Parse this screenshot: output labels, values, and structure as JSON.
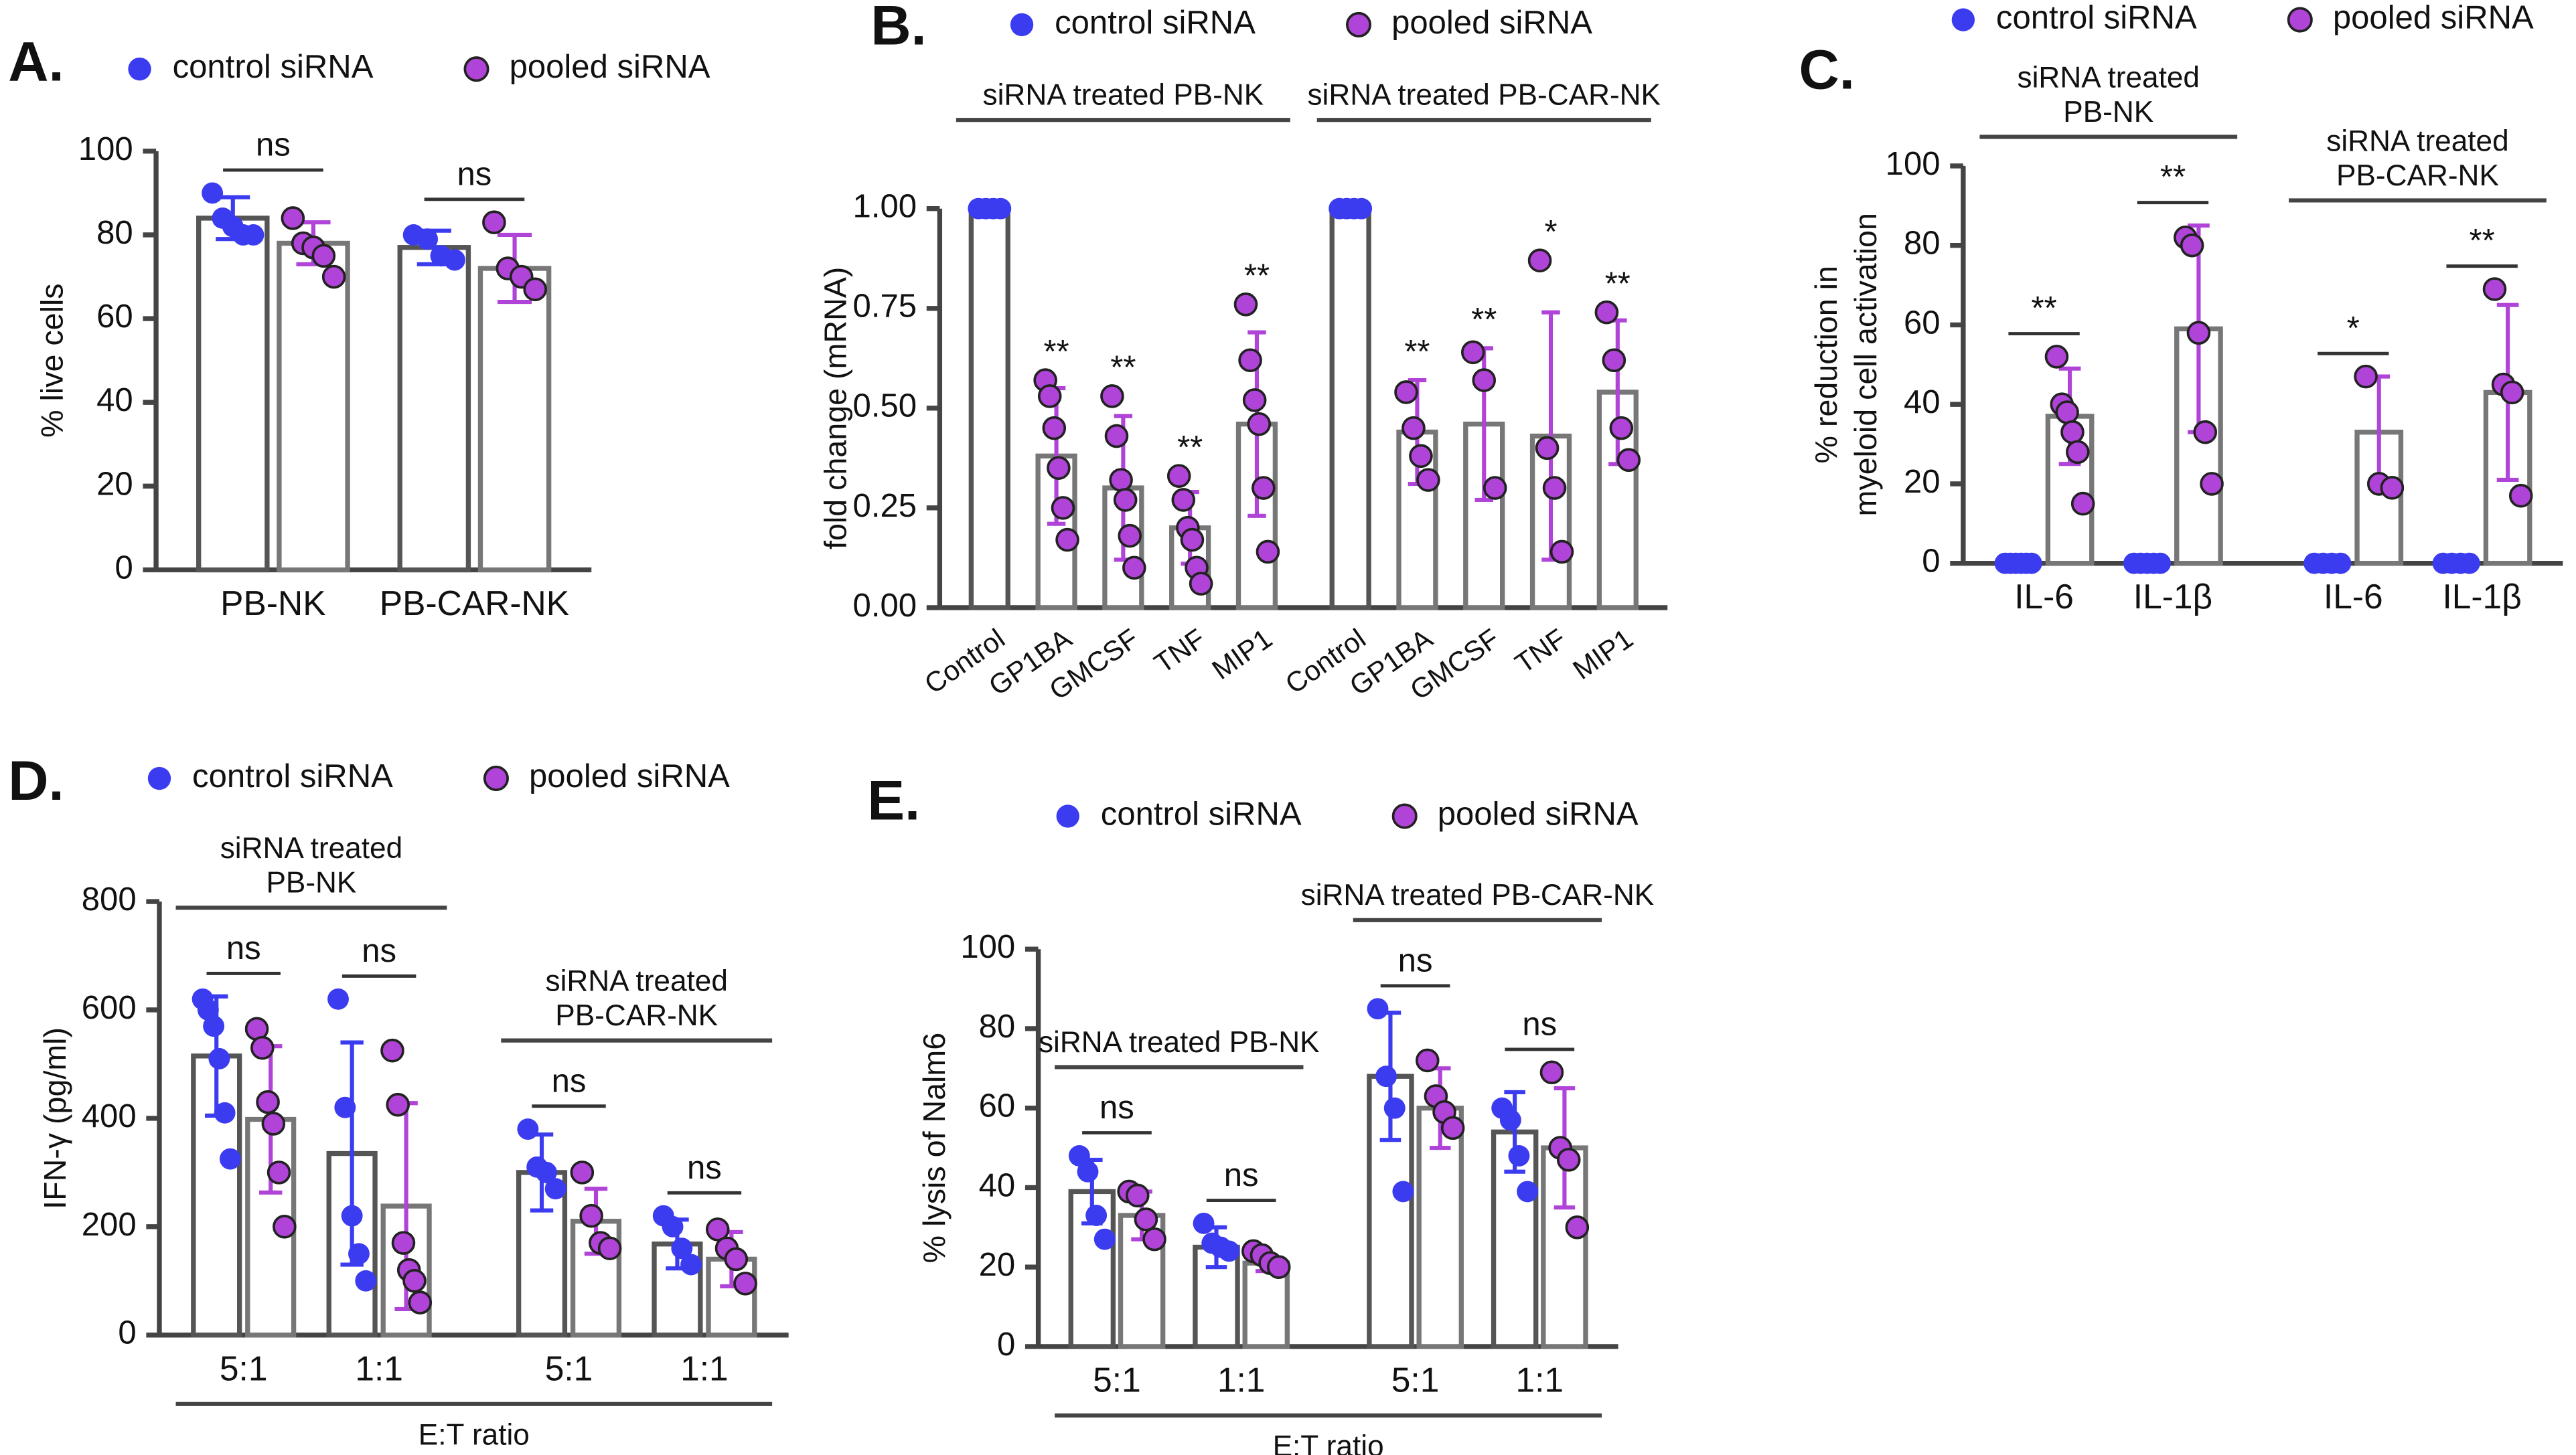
{
  "chart_data": [
    {
      "type": "bar",
      "panel": "A.",
      "ylabel": "% live cells",
      "ylim": [
        0,
        100
      ],
      "yticks": [
        0,
        20,
        40,
        60,
        80,
        100
      ],
      "series": [
        {
          "name": "control siRNA",
          "color": "#3b3bf0"
        },
        {
          "name": "pooled siRNA",
          "color": "#b044d8"
        }
      ],
      "groups": [
        {
          "categories": [
            "PB-NK",
            "PB-CAR-NK"
          ],
          "values": [
            [
              84,
              77
            ],
            [
              78,
              72
            ]
          ],
          "errors": [
            [
              5,
              4
            ],
            [
              5,
              8
            ]
          ],
          "points": [
            [
              [
                90,
                84,
                82,
                80,
                80
              ],
              [
                80,
                79,
                75,
                74
              ]
            ],
            [
              [
                84,
                78,
                77,
                75,
                70
              ],
              [
                83,
                72,
                70,
                67
              ]
            ]
          ],
          "significance": [
            "ns",
            "ns"
          ]
        }
      ]
    },
    {
      "type": "bar",
      "panel": "B.",
      "ylabel": "fold change (mRNA)",
      "ylim": [
        0,
        1
      ],
      "yticks": [
        {
          "value": 0,
          "label": "0.00"
        },
        {
          "value": 0.25,
          "label": "0.25"
        },
        {
          "value": 0.5,
          "label": "0.50"
        },
        {
          "value": 0.75,
          "label": "0.75"
        },
        {
          "value": 1,
          "label": "1.00"
        }
      ],
      "series": [
        {
          "name": "control siRNA",
          "color": "#3b3bf0"
        },
        {
          "name": "pooled siRNA",
          "color": "#b044d8"
        }
      ],
      "groups": [
        {
          "label": "siRNA treated PB-NK",
          "categories": [
            "Control",
            "GP1BA",
            "GMCSF",
            "TNF",
            "MIP1"
          ],
          "values": [
            [
              1,
              null,
              null,
              null,
              null
            ],
            [
              null,
              0.38,
              0.3,
              0.2,
              0.46
            ]
          ],
          "errors": [
            [
              null,
              null,
              null,
              null,
              null
            ],
            [
              null,
              0.17,
              0.18,
              0.09,
              0.23
            ]
          ],
          "points": [
            [
              [
                1,
                1,
                1,
                1
              ],
              null,
              null,
              null,
              null
            ],
            [
              null,
              [
                0.57,
                0.53,
                0.45,
                0.35,
                0.25,
                0.17
              ],
              [
                0.53,
                0.43,
                0.32,
                0.27,
                0.18,
                0.1
              ],
              [
                0.33,
                0.27,
                0.2,
                0.17,
                0.1,
                0.06
              ],
              [
                0.76,
                0.62,
                0.52,
                0.46,
                0.3,
                0.14
              ]
            ]
          ],
          "significance": [
            null,
            "**",
            "**",
            "**",
            "**"
          ]
        },
        {
          "label": "siRNA treated PB-CAR-NK",
          "categories": [
            "Control",
            "GP1BA",
            "GMCSF",
            "TNF",
            "MIP1"
          ],
          "values": [
            [
              1,
              null,
              null,
              null,
              null
            ],
            [
              null,
              0.44,
              0.46,
              0.43,
              0.54
            ]
          ],
          "errors": [
            [
              null,
              null,
              null,
              null,
              null
            ],
            [
              null,
              0.13,
              0.19,
              0.31,
              0.18
            ]
          ],
          "points": [
            [
              [
                1,
                1,
                1,
                1
              ],
              null,
              null,
              null,
              null
            ],
            [
              null,
              [
                0.54,
                0.45,
                0.38,
                0.32
              ],
              [
                0.64,
                0.57,
                0.3
              ],
              [
                0.87,
                0.4,
                0.3,
                0.14
              ],
              [
                0.74,
                0.62,
                0.45,
                0.37
              ]
            ]
          ],
          "significance": [
            null,
            "**",
            "**",
            "*",
            "**"
          ]
        }
      ]
    },
    {
      "type": "bar",
      "panel": "C.",
      "ylabel": [
        "% reduction in",
        "myeloid cell activation"
      ],
      "ylim": [
        0,
        100
      ],
      "yticks": [
        0,
        20,
        40,
        60,
        80,
        100
      ],
      "series": [
        {
          "name": "control siRNA",
          "color": "#3b3bf0"
        },
        {
          "name": "pooled siRNA",
          "color": "#b044d8"
        }
      ],
      "groups": [
        {
          "label": [
            "siRNA treated",
            "PB-NK"
          ],
          "categories": [
            "IL-6",
            "IL-1β"
          ],
          "values": [
            [
              0,
              0
            ],
            [
              37,
              59
            ]
          ],
          "errors": [
            [
              null,
              null
            ],
            [
              12,
              26
            ]
          ],
          "points": [
            [
              [
                0,
                0,
                0,
                0,
                0,
                0
              ],
              [
                0,
                0,
                0,
                0,
                0
              ]
            ],
            [
              [
                52,
                40,
                38,
                33,
                28,
                15
              ],
              [
                82,
                80,
                58,
                33,
                20
              ]
            ]
          ],
          "significance": [
            "**",
            "**"
          ]
        },
        {
          "label": [
            "siRNA treated",
            "PB-CAR-NK"
          ],
          "categories": [
            "IL-6",
            "IL-1β"
          ],
          "values": [
            [
              0,
              0
            ],
            [
              33,
              43
            ]
          ],
          "errors": [
            [
              null,
              null
            ],
            [
              14,
              22
            ]
          ],
          "points": [
            [
              [
                0,
                0,
                0,
                0
              ],
              [
                0,
                0,
                0,
                0
              ]
            ],
            [
              [
                47,
                20,
                19
              ],
              [
                69,
                45,
                43,
                17
              ]
            ]
          ],
          "significance": [
            "*",
            "**"
          ]
        }
      ]
    },
    {
      "type": "bar",
      "panel": "D.",
      "ylabel": "IFN-γ (pg/ml)",
      "xlabel": "E:T ratio",
      "ylim": [
        0,
        800
      ],
      "yticks": [
        0,
        200,
        400,
        600,
        800
      ],
      "series": [
        {
          "name": "control siRNA",
          "color": "#3b3bf0"
        },
        {
          "name": "pooled siRNA",
          "color": "#b044d8"
        }
      ],
      "groups": [
        {
          "label": [
            "siRNA treated",
            "PB-NK"
          ],
          "categories": [
            "5:1",
            "1:1"
          ],
          "values": [
            [
              515,
              335
            ],
            [
              398,
              238
            ]
          ],
          "errors": [
            [
              110,
              205
            ],
            [
              135,
              190
            ]
          ],
          "points": [
            [
              [
                620,
                600,
                570,
                510,
                410,
                325
              ],
              [
                620,
                420,
                220,
                150,
                100
              ]
            ],
            [
              [
                565,
                530,
                430,
                390,
                300,
                200
              ],
              [
                525,
                425,
                170,
                120,
                100,
                60
              ]
            ]
          ],
          "significance": [
            "ns",
            "ns"
          ]
        },
        {
          "label": [
            "siRNA treated",
            "PB-CAR-NK"
          ],
          "categories": [
            "5:1",
            "1:1"
          ],
          "values": [
            [
              300,
              168
            ],
            [
              210,
              140
            ]
          ],
          "errors": [
            [
              70,
              45
            ],
            [
              60,
              50
            ]
          ],
          "points": [
            [
              [
                380,
                310,
                300,
                270
              ],
              [
                220,
                200,
                160,
                130
              ]
            ],
            [
              [
                300,
                220,
                170,
                160
              ],
              [
                195,
                160,
                140,
                95
              ]
            ]
          ],
          "significance": [
            "ns",
            "ns"
          ]
        }
      ]
    },
    {
      "type": "bar",
      "panel": "E.",
      "ylabel": "% lysis of Nalm6",
      "xlabel": "E:T ratio",
      "ylim": [
        0,
        100
      ],
      "yticks": [
        0,
        20,
        40,
        60,
        80,
        100
      ],
      "series": [
        {
          "name": "control siRNA",
          "color": "#3b3bf0"
        },
        {
          "name": "pooled siRNA",
          "color": "#b044d8"
        }
      ],
      "groups": [
        {
          "label": "siRNA treated PB-NK",
          "categories": [
            "5:1",
            "1:1"
          ],
          "values": [
            [
              39,
              25
            ],
            [
              33,
              21
            ]
          ],
          "errors": [
            [
              8,
              5
            ],
            [
              6,
              2
            ]
          ],
          "points": [
            [
              [
                48,
                44,
                33,
                27
              ],
              [
                31,
                26,
                25,
                24
              ]
            ],
            [
              [
                39,
                38,
                32,
                27
              ],
              [
                24,
                23,
                21,
                20
              ]
            ]
          ],
          "significance": [
            "ns",
            "ns"
          ]
        },
        {
          "label": "siRNA treated PB-CAR-NK",
          "categories": [
            "5:1",
            "1:1"
          ],
          "values": [
            [
              68,
              54
            ],
            [
              60,
              50
            ]
          ],
          "errors": [
            [
              16,
              10
            ],
            [
              10,
              15
            ]
          ],
          "points": [
            [
              [
                85,
                68,
                60,
                39
              ],
              [
                60,
                57,
                48,
                39
              ]
            ],
            [
              [
                72,
                63,
                59,
                55
              ],
              [
                69,
                50,
                47,
                30
              ]
            ]
          ],
          "significance": [
            "ns",
            "ns"
          ]
        }
      ]
    }
  ]
}
